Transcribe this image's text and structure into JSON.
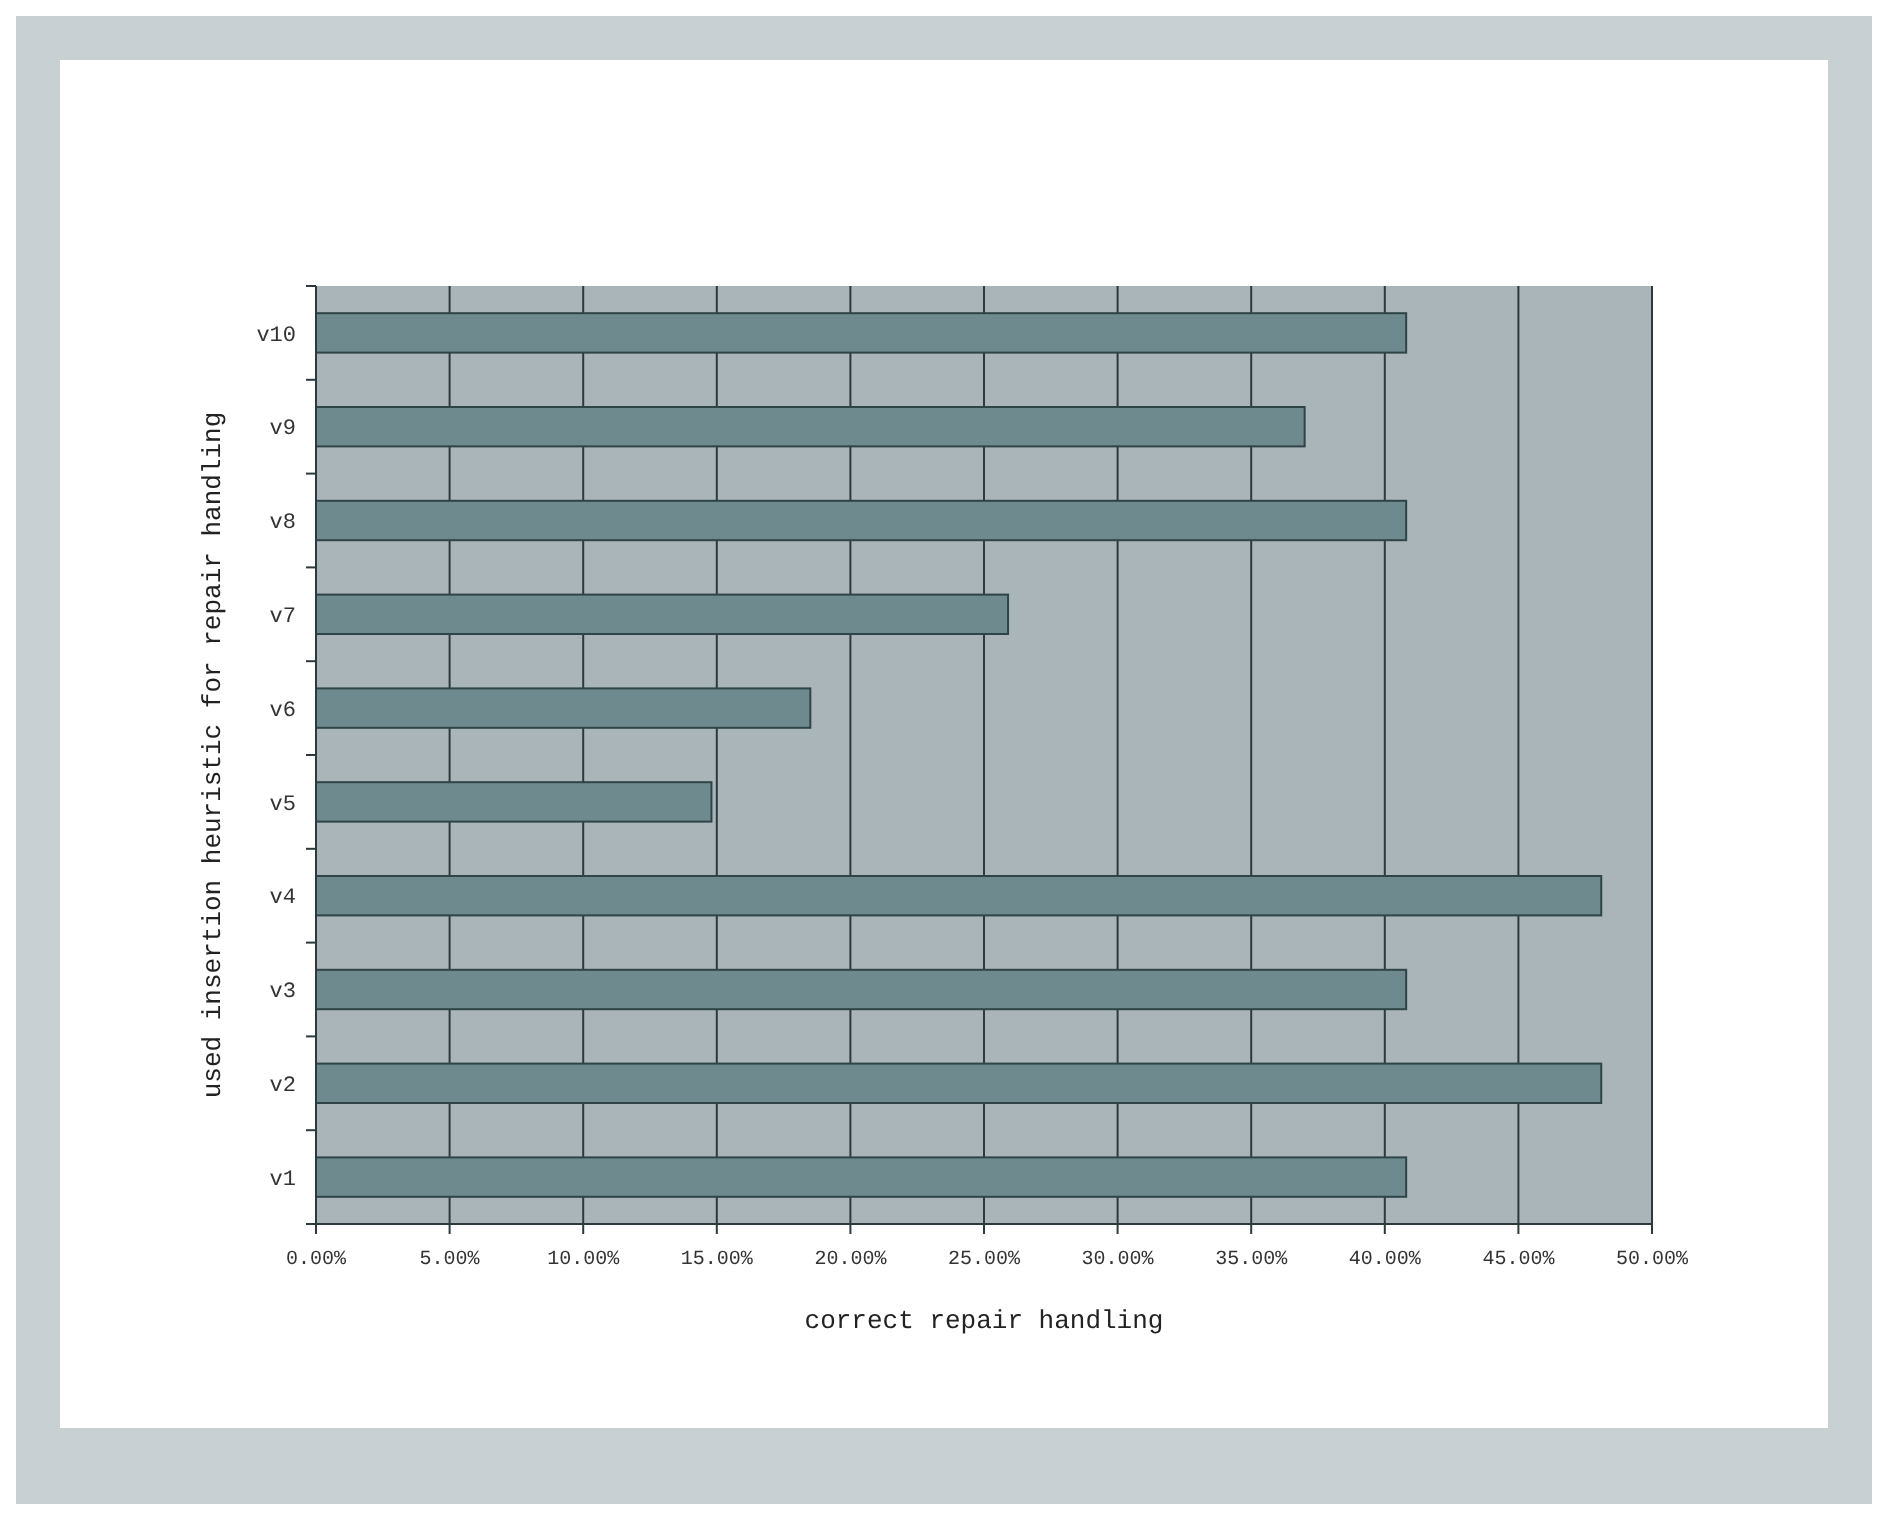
{
  "chart_data": {
    "type": "bar",
    "orientation": "horizontal",
    "xlabel": "correct repair handling",
    "ylabel": "used insertion heuristic for repair handling",
    "categories": [
      "v10",
      "v9",
      "v8",
      "v7",
      "v6",
      "v5",
      "v4",
      "v3",
      "v2",
      "v1"
    ],
    "values": [
      40.8,
      37.0,
      40.8,
      25.9,
      18.5,
      14.8,
      48.1,
      40.8,
      48.1,
      40.8
    ],
    "color": "#6f8a8e",
    "xlim": [
      0,
      50
    ],
    "xticks": [
      {
        "value": 0,
        "label": "0.00%"
      },
      {
        "value": 5,
        "label": "5.00%"
      },
      {
        "value": 10,
        "label": "10.00%"
      },
      {
        "value": 15,
        "label": "15.00%"
      },
      {
        "value": 20,
        "label": "20.00%"
      },
      {
        "value": 25,
        "label": "25.00%"
      },
      {
        "value": 30,
        "label": "30.00%"
      },
      {
        "value": 35,
        "label": "35.00%"
      },
      {
        "value": 40,
        "label": "40.00%"
      },
      {
        "value": 45,
        "label": "45.00%"
      },
      {
        "value": 50,
        "label": "50.00%"
      }
    ],
    "grid": "x"
  }
}
